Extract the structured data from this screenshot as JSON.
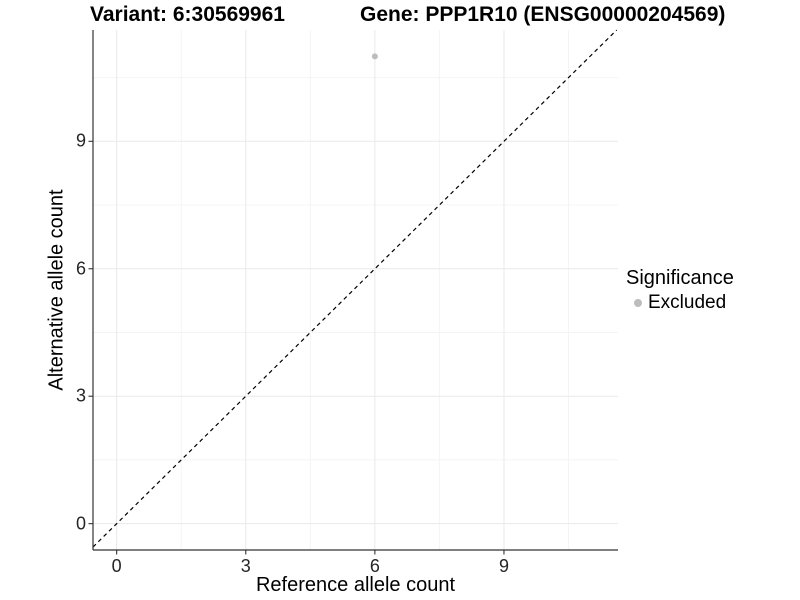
{
  "titles": {
    "variant": "Variant: 6:30569961",
    "gene": "Gene: PPP1R10 (ENSG00000204569)"
  },
  "colors": {
    "point": "#BDBDBD",
    "grid_major": "#E9E9E9",
    "grid_minor": "#F4F4F4",
    "axis_line": "#333333",
    "reference_line": "#000000",
    "background": "#FFFFFF"
  },
  "chart_data": {
    "type": "scatter",
    "title_left": "Variant: 6:30569961",
    "title_right": "Gene: PPP1R10 (ENSG00000204569)",
    "xlabel": "Reference allele count",
    "ylabel": "Alternative allele count",
    "x_ticks": [
      0,
      3,
      6,
      9
    ],
    "y_ticks": [
      0,
      3,
      6,
      9
    ],
    "x_minor_ticks": [
      1.5,
      4.5,
      7.5,
      10.5
    ],
    "y_minor_ticks": [
      1.5,
      4.5,
      7.5,
      10.5
    ],
    "x_range": [
      -0.55,
      11.65
    ],
    "y_range": [
      -0.62,
      11.62
    ],
    "grid": true,
    "legend": {
      "title": "Significance",
      "position": "right",
      "items": [
        {
          "label": "Excluded",
          "color": "#BDBDBD"
        }
      ]
    },
    "reference_line": {
      "type": "identity",
      "slope": 1,
      "intercept": 0,
      "style": "dashed"
    },
    "series": [
      {
        "name": "Excluded",
        "color": "#BDBDBD",
        "points": [
          {
            "x": 6,
            "y": 11
          }
        ]
      }
    ]
  }
}
